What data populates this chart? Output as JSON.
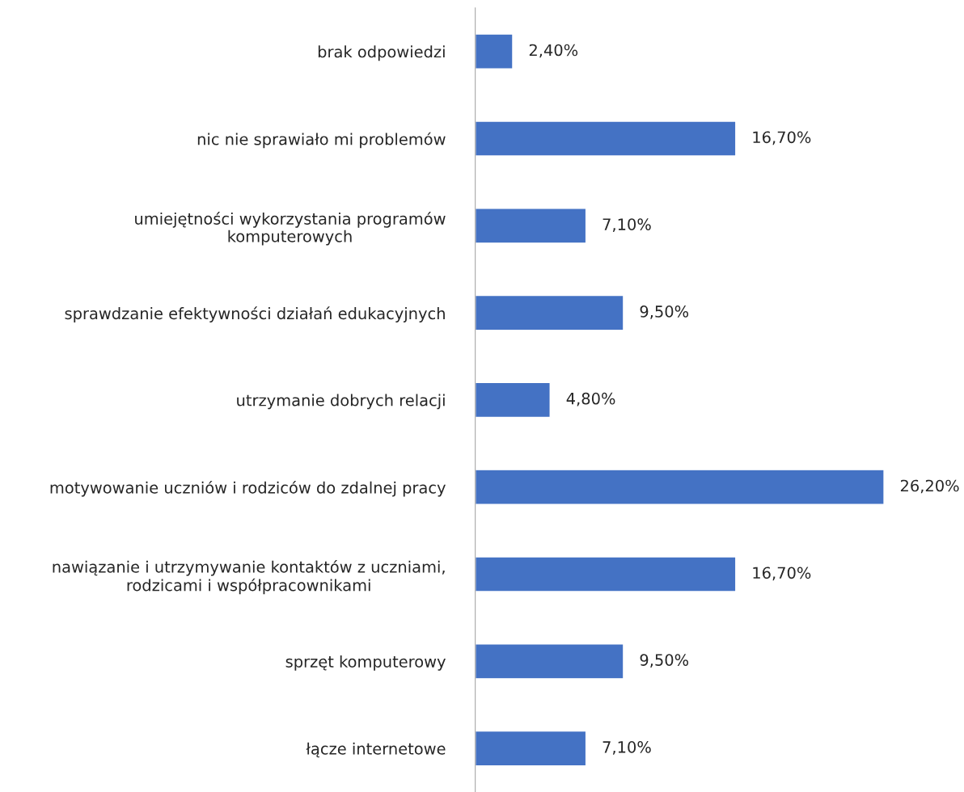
{
  "chart_data": {
    "type": "bar",
    "orientation": "horizontal",
    "categories": [
      "brak odpowiedzi",
      "nic nie sprawiało mi problemów",
      "umiejętności wykorzystania programów\nkomputerowych",
      "sprawdzanie efektywności działań edukacyjnych",
      "utrzymanie dobrych relacji",
      "motywowanie uczniów i rodziców do zdalnej pracy",
      "nawiązanie i utrzymywanie kontaktów z uczniami,\nrodzicami i współpracownikami",
      "sprzęt komputerowy",
      "łącze internetowe"
    ],
    "values": [
      2.4,
      16.7,
      7.1,
      9.5,
      4.8,
      26.2,
      16.7,
      9.5,
      7.1
    ],
    "value_labels": [
      "2,40%",
      "16,70%",
      "7,10%",
      "9,50%",
      "4,80%",
      "26,20%",
      "16,70%",
      "9,50%",
      "7,10%"
    ],
    "color": "#4472c4",
    "grid": false,
    "legend": false,
    "tick_labels": "y"
  }
}
